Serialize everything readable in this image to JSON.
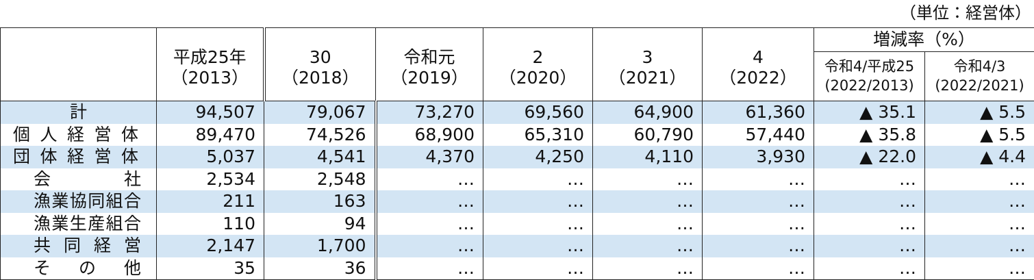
{
  "unit": "（単位：経営体）",
  "table": {
    "columns": [
      {
        "line1": "平成25年",
        "line2": "（2013）"
      },
      {
        "line1": "30",
        "line2": "（2018）"
      },
      {
        "line1": "令和元",
        "line2": "（2019）"
      },
      {
        "line1": "2",
        "line2": "（2020）"
      },
      {
        "line1": "3",
        "line2": "（2021）"
      },
      {
        "line1": "4",
        "line2": "（2022）"
      }
    ],
    "group_header": "増減率（%）",
    "sub_columns": [
      {
        "line1": "令和4/平成25",
        "line2": "(2022/2013)"
      },
      {
        "line1": "令和4/3",
        "line2": "(2022/2021)"
      }
    ],
    "rows": [
      {
        "label": "計",
        "values": [
          "94,507",
          "79,067",
          "73,270",
          "69,560",
          "64,900",
          "61,360",
          "▲ 35.1",
          "▲ 5.5"
        ]
      },
      {
        "label": "個人経営体",
        "values": [
          "89,470",
          "74,526",
          "68,900",
          "65,310",
          "60,790",
          "57,440",
          "▲ 35.8",
          "▲ 5.5"
        ]
      },
      {
        "label": "団体経営体",
        "values": [
          "5,037",
          "4,541",
          "4,370",
          "4,250",
          "4,110",
          "3,930",
          "▲ 22.0",
          "▲ 4.4"
        ]
      },
      {
        "label": "会社",
        "values": [
          "2,534",
          "2,548",
          "…",
          "…",
          "…",
          "…",
          "…",
          "…"
        ]
      },
      {
        "label": "漁業協同組合",
        "values": [
          "211",
          "163",
          "…",
          "…",
          "…",
          "…",
          "…",
          "…"
        ]
      },
      {
        "label": "漁業生産組合",
        "values": [
          "110",
          "94",
          "…",
          "…",
          "…",
          "…",
          "…",
          "…"
        ]
      },
      {
        "label": "共同経営",
        "values": [
          "2,147",
          "1,700",
          "…",
          "…",
          "…",
          "…",
          "…",
          "…"
        ]
      },
      {
        "label": "その他",
        "values": [
          "35",
          "36",
          "…",
          "…",
          "…",
          "…",
          "…",
          "…"
        ]
      }
    ]
  }
}
